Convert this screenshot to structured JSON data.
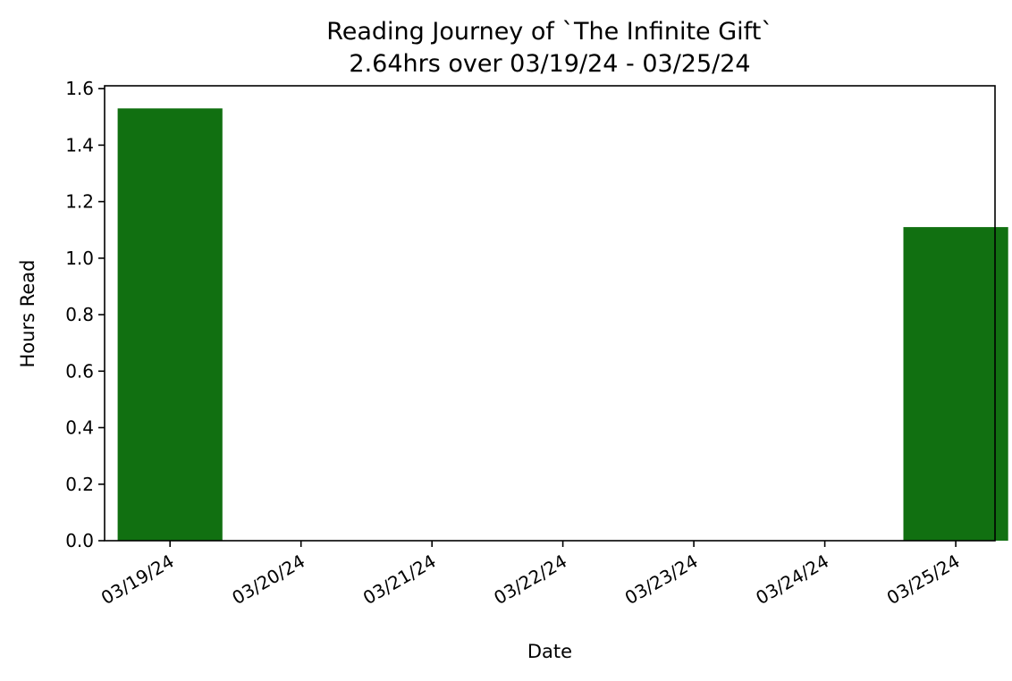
{
  "chart_data": {
    "type": "bar",
    "title": "Reading Journey of `The Infinite Gift`",
    "subtitle": "2.64hrs over 03/19/24 - 03/25/24",
    "xlabel": "Date",
    "ylabel": "Hours Read",
    "categories": [
      "03/19/24",
      "03/20/24",
      "03/21/24",
      "03/22/24",
      "03/23/24",
      "03/24/24",
      "03/25/24"
    ],
    "values": [
      1.53,
      0,
      0,
      0,
      0,
      0,
      1.11
    ],
    "ylim": [
      0,
      1.61
    ],
    "yticks": [
      "0.0",
      "0.2",
      "0.4",
      "0.6",
      "0.8",
      "1.0",
      "1.2",
      "1.4",
      "1.6"
    ],
    "grid": false,
    "bar_color": "#117011"
  }
}
